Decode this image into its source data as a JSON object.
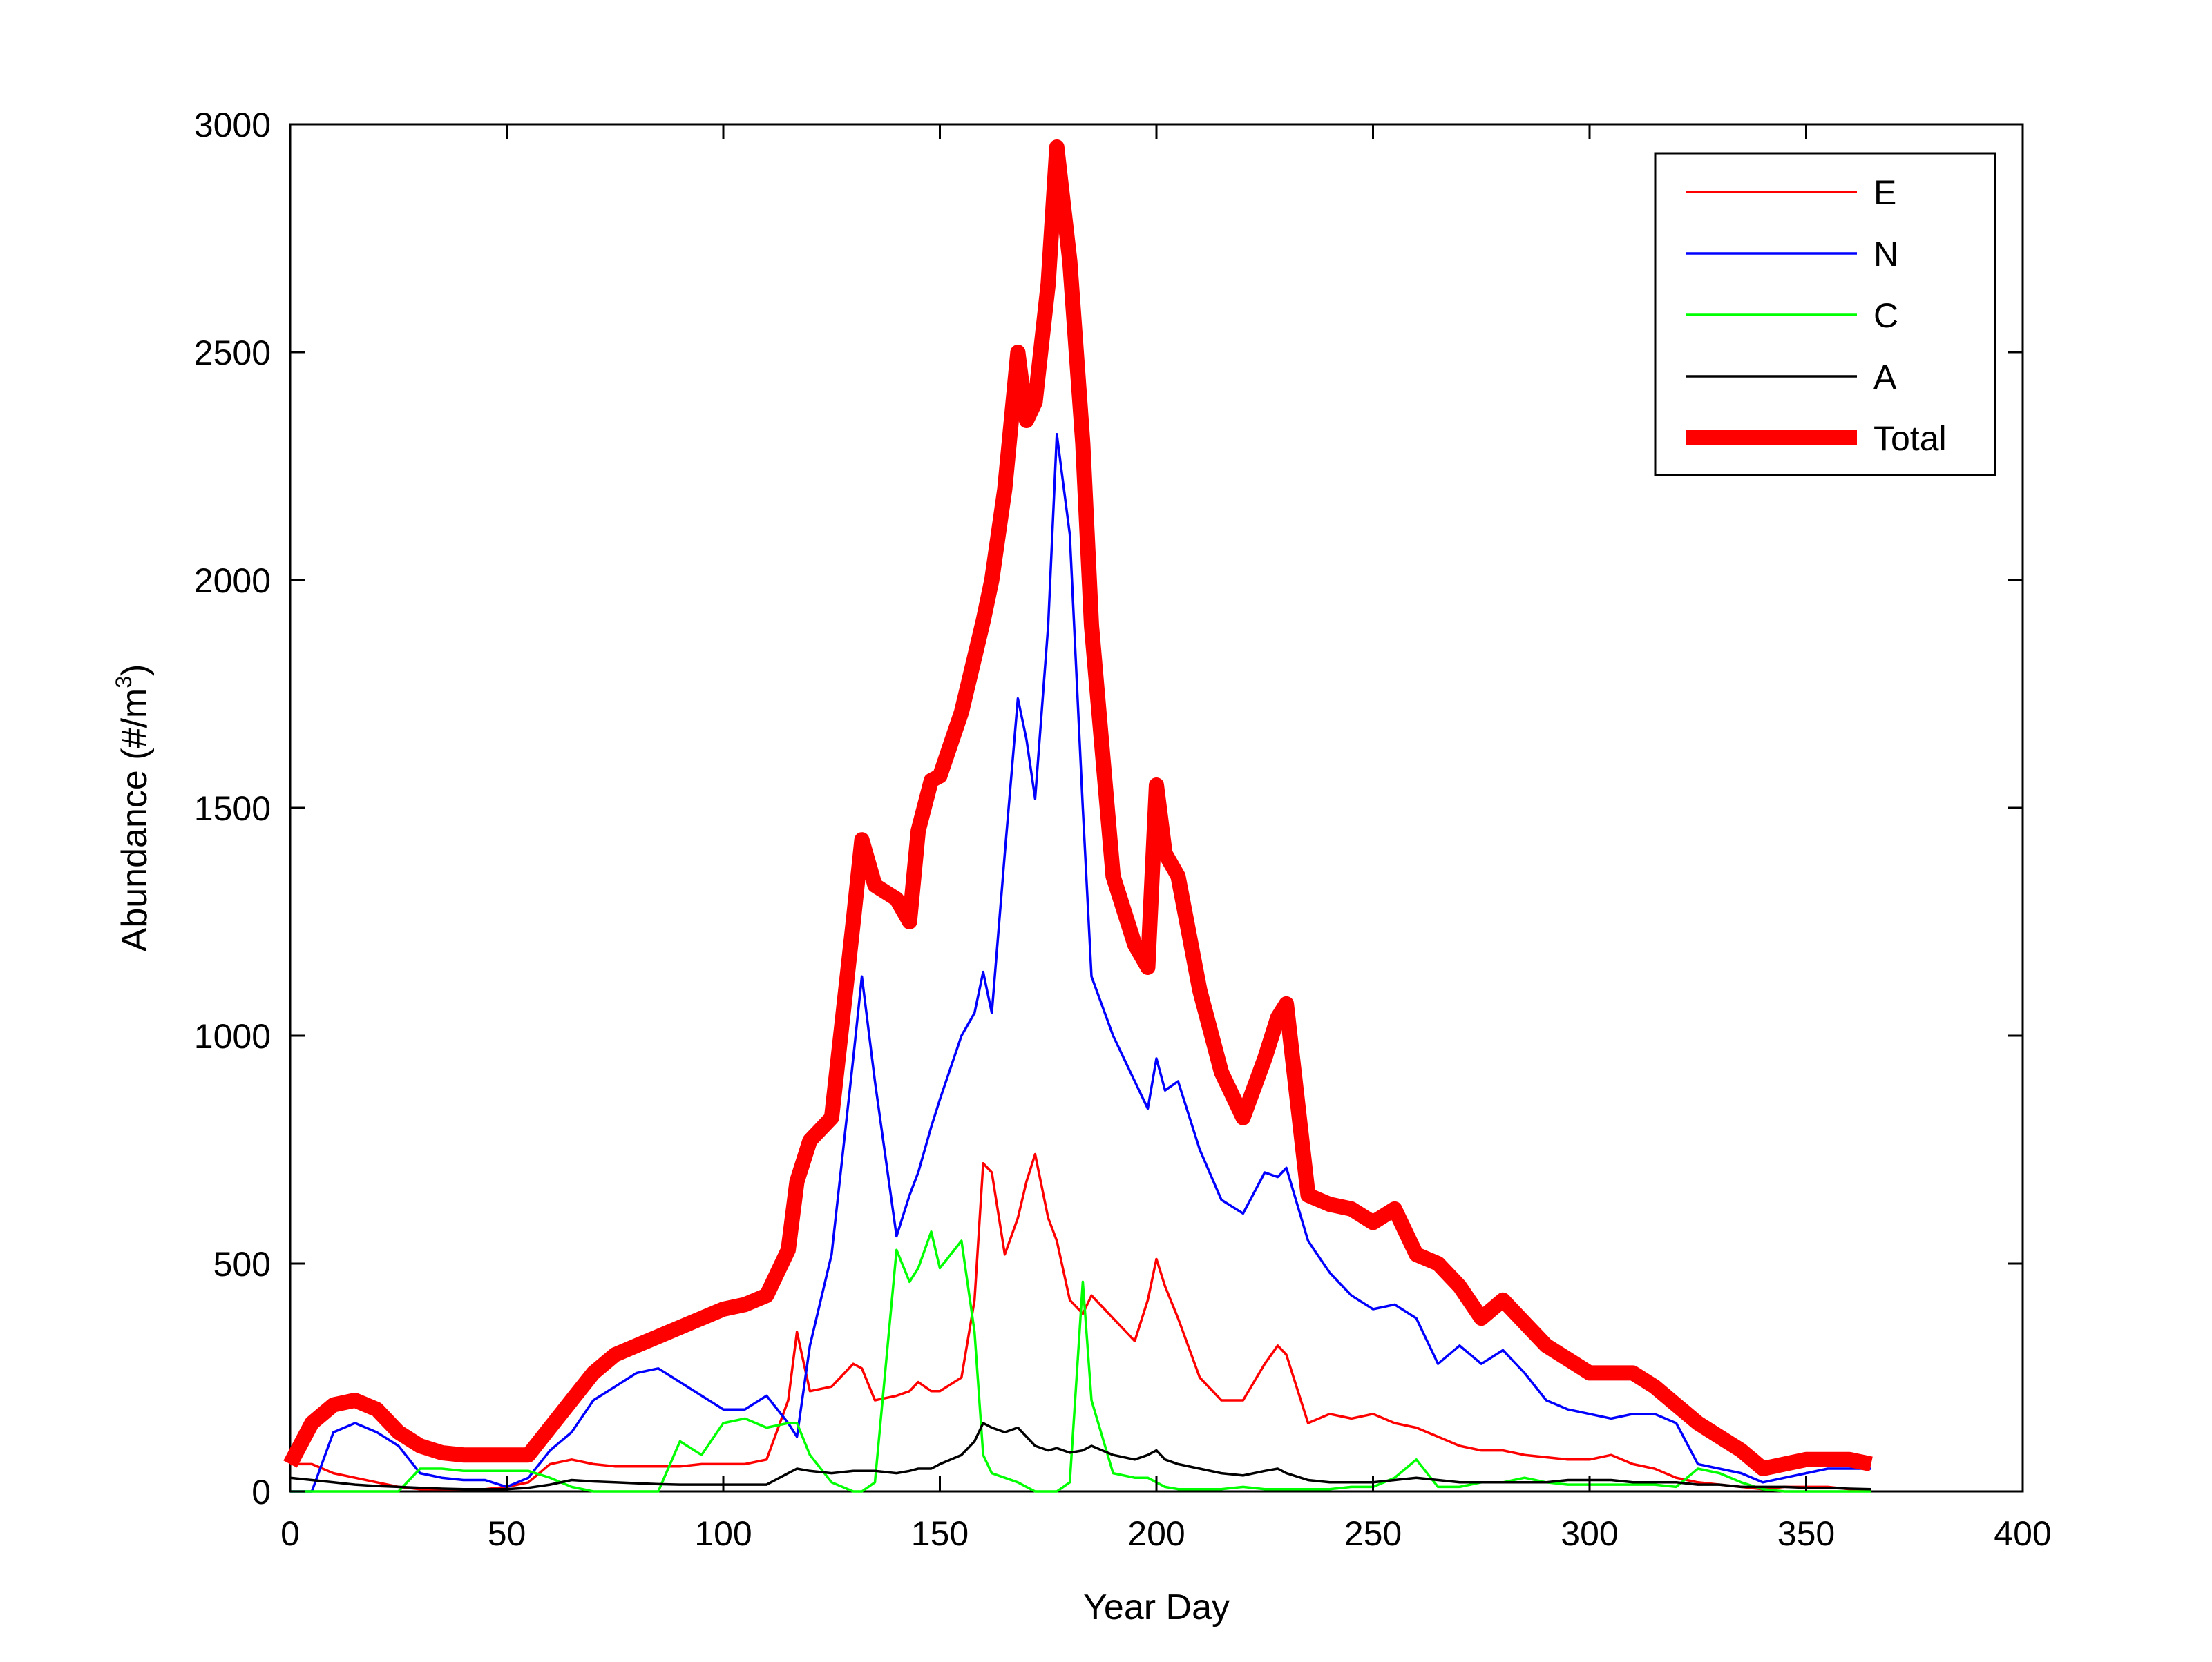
{
  "chart_data": {
    "type": "line",
    "xlabel": "Year Day",
    "ylabel": "Abundance (#/m",
    "ylabel_sup": "3",
    "ylabel_close": ")",
    "xlim": [
      0,
      400
    ],
    "ylim": [
      0,
      3000
    ],
    "xticks": [
      0,
      50,
      100,
      150,
      200,
      250,
      300,
      350,
      400
    ],
    "yticks": [
      0,
      500,
      1000,
      1500,
      2000,
      2500,
      3000
    ],
    "grid": false,
    "legend_position": "top-right",
    "x": [
      0,
      5,
      10,
      15,
      20,
      25,
      30,
      35,
      40,
      45,
      50,
      55,
      60,
      65,
      70,
      75,
      80,
      85,
      90,
      95,
      100,
      105,
      110,
      115,
      117,
      120,
      125,
      130,
      132,
      135,
      140,
      143,
      145,
      148,
      150,
      155,
      158,
      160,
      162,
      165,
      168,
      170,
      172,
      175,
      177,
      180,
      183,
      185,
      190,
      195,
      198,
      200,
      202,
      205,
      210,
      215,
      220,
      225,
      228,
      230,
      235,
      240,
      245,
      250,
      255,
      260,
      265,
      270,
      275,
      280,
      285,
      290,
      295,
      300,
      305,
      310,
      315,
      320,
      325,
      330,
      335,
      340,
      345,
      350,
      355,
      360,
      365
    ],
    "series": [
      {
        "name": "E",
        "color": "#ff0000",
        "width": "thin",
        "values": [
          60,
          60,
          40,
          30,
          20,
          10,
          5,
          5,
          5,
          5,
          10,
          20,
          60,
          70,
          60,
          55,
          55,
          55,
          55,
          60,
          60,
          60,
          70,
          200,
          350,
          220,
          230,
          280,
          270,
          200,
          210,
          220,
          240,
          220,
          220,
          250,
          420,
          720,
          700,
          520,
          600,
          680,
          740,
          600,
          550,
          420,
          390,
          430,
          380,
          330,
          420,
          510,
          450,
          380,
          250,
          200,
          200,
          280,
          320,
          300,
          150,
          170,
          160,
          170,
          150,
          140,
          120,
          100,
          90,
          90,
          80,
          75,
          70,
          70,
          80,
          60,
          50,
          30,
          20,
          15,
          10,
          5,
          10,
          10,
          10,
          5,
          5
        ]
      },
      {
        "name": "N",
        "color": "#0000ff",
        "width": "thin",
        "values": [
          0,
          0,
          130,
          150,
          130,
          100,
          40,
          30,
          25,
          25,
          10,
          30,
          90,
          130,
          200,
          230,
          260,
          270,
          240,
          210,
          180,
          180,
          210,
          150,
          120,
          320,
          520,
          950,
          1130,
          900,
          560,
          650,
          700,
          800,
          860,
          1000,
          1050,
          1140,
          1050,
          1400,
          1740,
          1650,
          1520,
          1900,
          2320,
          2100,
          1500,
          1130,
          1000,
          900,
          840,
          950,
          880,
          900,
          750,
          640,
          610,
          700,
          690,
          710,
          550,
          480,
          430,
          400,
          410,
          380,
          280,
          320,
          280,
          310,
          260,
          200,
          180,
          170,
          160,
          170,
          170,
          150,
          60,
          50,
          40,
          20,
          30,
          40,
          50,
          50,
          50
        ]
      },
      {
        "name": "C",
        "color": "#00ff00",
        "width": "thin",
        "values": [
          0,
          0,
          0,
          0,
          0,
          0,
          50,
          50,
          45,
          45,
          45,
          45,
          30,
          10,
          0,
          0,
          0,
          0,
          110,
          80,
          150,
          160,
          140,
          150,
          150,
          80,
          20,
          0,
          0,
          20,
          530,
          460,
          490,
          570,
          490,
          550,
          350,
          80,
          40,
          30,
          20,
          10,
          0,
          0,
          0,
          20,
          460,
          200,
          40,
          30,
          30,
          20,
          10,
          5,
          5,
          5,
          10,
          5,
          5,
          5,
          5,
          5,
          10,
          10,
          30,
          70,
          10,
          10,
          20,
          20,
          30,
          20,
          15,
          15,
          15,
          15,
          15,
          10,
          50,
          40,
          20,
          5,
          0,
          0,
          0,
          0,
          0
        ]
      },
      {
        "name": "A",
        "color": "#000000",
        "width": "thin",
        "values": [
          30,
          25,
          20,
          15,
          12,
          10,
          8,
          6,
          5,
          5,
          5,
          8,
          15,
          25,
          22,
          20,
          18,
          16,
          15,
          15,
          15,
          15,
          15,
          40,
          50,
          45,
          40,
          45,
          45,
          45,
          40,
          45,
          50,
          50,
          60,
          80,
          110,
          150,
          140,
          130,
          140,
          120,
          100,
          90,
          95,
          85,
          90,
          100,
          80,
          70,
          80,
          90,
          70,
          60,
          50,
          40,
          35,
          45,
          50,
          40,
          25,
          20,
          20,
          20,
          25,
          30,
          25,
          20,
          20,
          20,
          20,
          20,
          25,
          25,
          25,
          20,
          20,
          20,
          15,
          15,
          10,
          10,
          10,
          8,
          8,
          6,
          5
        ]
      },
      {
        "name": "Total",
        "color": "#ff0000",
        "width": "thick",
        "values": [
          60,
          150,
          190,
          200,
          180,
          130,
          100,
          85,
          80,
          80,
          80,
          80,
          140,
          200,
          260,
          300,
          320,
          340,
          360,
          380,
          400,
          410,
          430,
          530,
          680,
          770,
          820,
          1250,
          1430,
          1330,
          1300,
          1250,
          1450,
          1560,
          1570,
          1710,
          1830,
          1910,
          2000,
          2200,
          2500,
          2350,
          2390,
          2650,
          2950,
          2700,
          2300,
          1900,
          1350,
          1200,
          1150,
          1550,
          1400,
          1350,
          1100,
          920,
          820,
          950,
          1040,
          1070,
          650,
          630,
          620,
          590,
          620,
          520,
          500,
          450,
          380,
          420,
          370,
          320,
          290,
          260,
          260,
          260,
          230,
          190,
          150,
          120,
          90,
          50,
          60,
          70,
          70,
          70,
          60
        ]
      }
    ]
  }
}
